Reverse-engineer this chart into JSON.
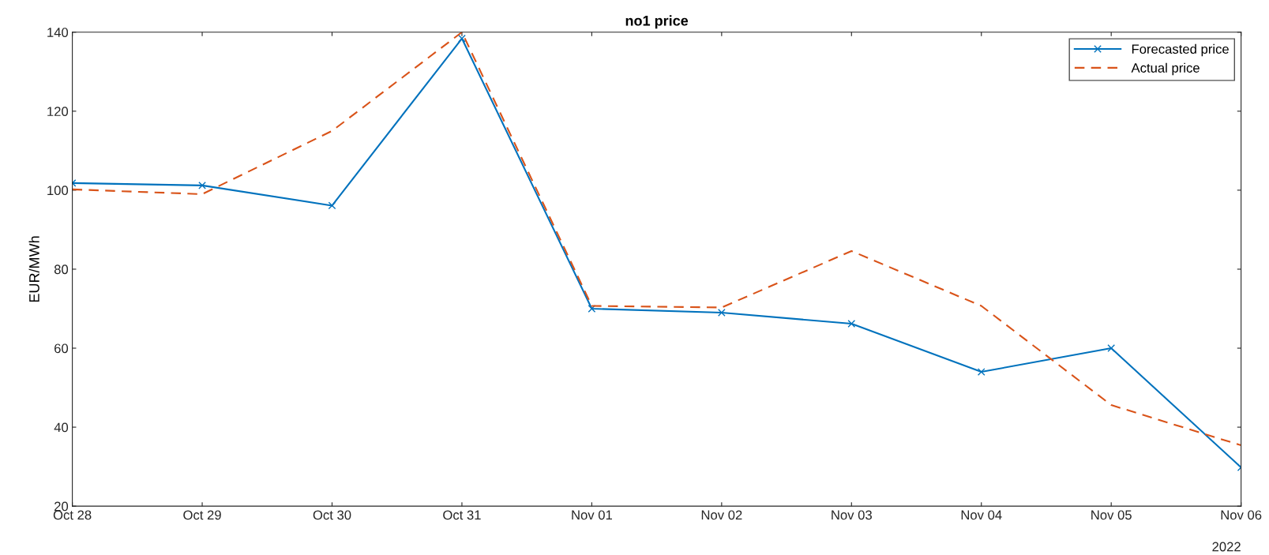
{
  "chart_data": {
    "type": "line",
    "title": "no1 price",
    "ylabel": "EUR/MWh",
    "x": [
      "2022-10-28",
      "2022-10-29",
      "2022-10-30",
      "2022-10-31",
      "2022-11-01",
      "2022-11-02",
      "2022-11-03",
      "2022-11-04",
      "2022-11-05",
      "2022-11-06"
    ],
    "series": [
      {
        "name": "Forecasted price",
        "color": "#0072bd",
        "marker": "cross",
        "line_style": "solid",
        "values": [
          101.8,
          101.2,
          96.1,
          138.4,
          70.0,
          69.0,
          66.2,
          54.0,
          60.0,
          29.8
        ]
      },
      {
        "name": "Actual price",
        "color": "#d95319",
        "marker": "none",
        "line_style": "dashed",
        "values": [
          100.2,
          99.0,
          115.0,
          140.0,
          70.7,
          70.3,
          84.6,
          70.7,
          45.6,
          35.4
        ]
      }
    ],
    "xlim": [
      "2022-10-28",
      "2022-11-06"
    ],
    "xticks": [
      {
        "value": "2022-10-28",
        "label": "Oct 28"
      },
      {
        "value": "2022-10-29",
        "label": "Oct 29"
      },
      {
        "value": "2022-10-30",
        "label": "Oct 30"
      },
      {
        "value": "2022-10-31",
        "label": "Oct 31"
      },
      {
        "value": "2022-11-01",
        "label": "Nov 01"
      },
      {
        "value": "2022-11-02",
        "label": "Nov 02"
      },
      {
        "value": "2022-11-03",
        "label": "Nov 03"
      },
      {
        "value": "2022-11-04",
        "label": "Nov 04"
      },
      {
        "value": "2022-11-05",
        "label": "Nov 05"
      },
      {
        "value": "2022-11-06",
        "label": "Nov 06"
      }
    ],
    "ylim": [
      20,
      140
    ],
    "yticks": [
      20,
      40,
      60,
      80,
      100,
      120,
      140
    ],
    "annotations": [
      "2022"
    ],
    "grid": false,
    "legend": "top right"
  }
}
